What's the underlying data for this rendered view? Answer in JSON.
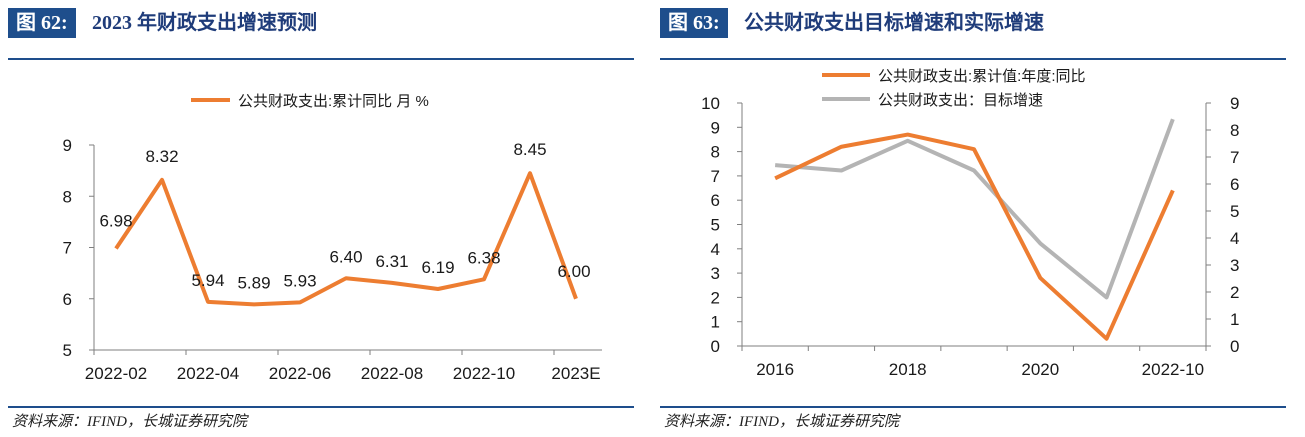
{
  "left": {
    "figure_tag": "图 62:",
    "figure_title": "2023 年财政支出增速预测",
    "source": "资料来源：IFIND，长城证券研究院"
  },
  "right": {
    "figure_tag": "图 63:",
    "figure_title": "公共财政支出目标增速和实际增速",
    "source": "资料来源：IFIND，长城证券研究院"
  },
  "colors": {
    "accent": "#1e4e8c",
    "orange": "#ed7d31",
    "gray": "#b4b4b4"
  },
  "chart_data": [
    {
      "type": "line",
      "categories": [
        "2022-02",
        "2022-03",
        "2022-04",
        "2022-05",
        "2022-06",
        "2022-07",
        "2022-08",
        "2022-09",
        "2022-10",
        "2022-11",
        "2023E"
      ],
      "x_tick_labels": [
        "2022-02",
        "2022-04",
        "2022-06",
        "2022-08",
        "2022-10",
        "2023E"
      ],
      "series": [
        {
          "name": "公共财政支出:累计同比 月 %",
          "color": "#ed7d31",
          "values": [
            6.98,
            8.32,
            5.94,
            5.89,
            5.93,
            6.4,
            6.31,
            6.19,
            6.38,
            8.45,
            6.0
          ],
          "data_labels": [
            "6.98",
            "8.32",
            "5.94",
            "5.89",
            "5.93",
            "6.40",
            "6.31",
            "6.19",
            "6.38",
            "8.45",
            "6.00"
          ]
        }
      ],
      "ylim": [
        5,
        9
      ],
      "y_ticks": [
        "5",
        "6",
        "7",
        "8",
        "9"
      ],
      "legend": "top",
      "grid": false
    },
    {
      "type": "line",
      "categories": [
        "2016",
        "2017",
        "2018",
        "2019",
        "2020",
        "2021",
        "2022-10"
      ],
      "x_tick_labels": [
        "2016",
        "2018",
        "2020",
        "2022-10"
      ],
      "series": [
        {
          "name": "公共财政支出:累计值:年度:同比",
          "color": "#ed7d31",
          "axis": "left",
          "values": [
            6.9,
            8.2,
            8.7,
            8.1,
            2.8,
            0.3,
            6.4
          ]
        },
        {
          "name": "公共财政支出：目标增速",
          "color": "#b4b4b4",
          "axis": "right",
          "values": [
            6.7,
            6.5,
            7.6,
            6.5,
            3.8,
            1.8,
            8.4
          ]
        }
      ],
      "ylim_left": [
        0,
        10
      ],
      "ylim_right": [
        0,
        9
      ],
      "y_ticks_left": [
        "0",
        "1",
        "2",
        "3",
        "4",
        "5",
        "6",
        "7",
        "8",
        "9",
        "10"
      ],
      "y_ticks_right": [
        "0",
        "1",
        "2",
        "3",
        "4",
        "5",
        "6",
        "7",
        "8",
        "9"
      ],
      "legend": "top",
      "grid": false
    }
  ]
}
